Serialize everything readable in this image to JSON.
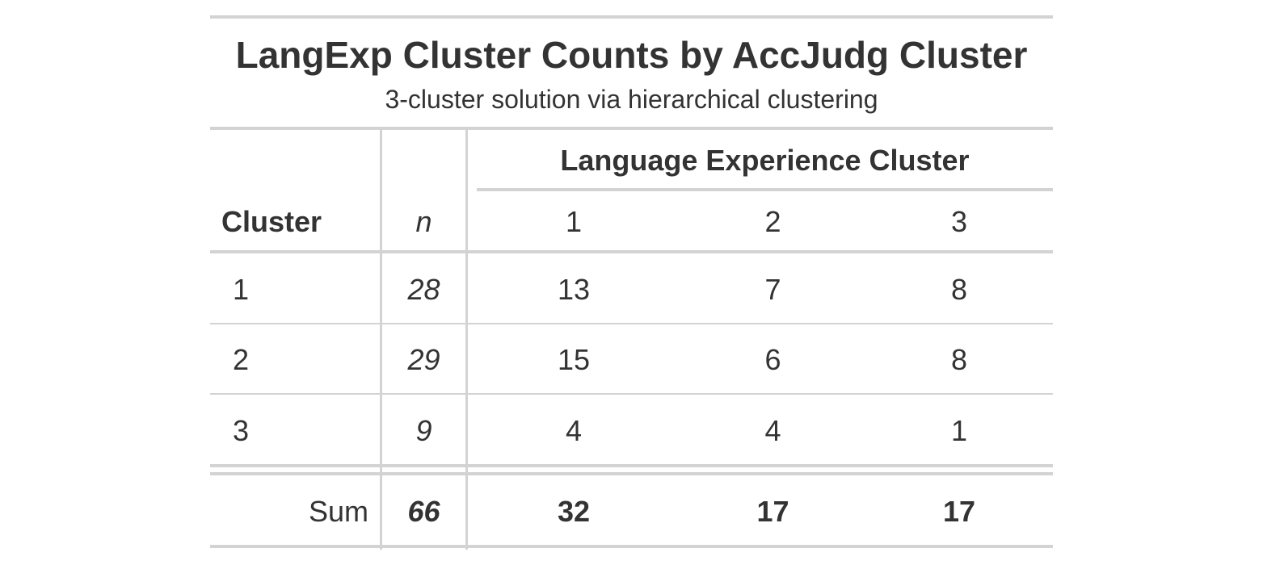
{
  "table": {
    "title": "LangExp Cluster Counts by AccJudg Cluster",
    "subtitle": "3-cluster solution via hierarchical clustering",
    "spanner_label": "Language Experience Cluster",
    "columns": {
      "cluster": "Cluster",
      "n": "n",
      "c1": "1",
      "c2": "2",
      "c3": "3"
    },
    "rows": [
      {
        "cluster": "1",
        "n": "28",
        "c1": "13",
        "c2": "7",
        "c3": "8"
      },
      {
        "cluster": "2",
        "n": "29",
        "c1": "15",
        "c2": "6",
        "c3": "8"
      },
      {
        "cluster": "3",
        "n": "9",
        "c1": "4",
        "c2": "4",
        "c3": "1"
      }
    ],
    "summary": {
      "label": "Sum",
      "n": "66",
      "c1": "32",
      "c2": "17",
      "c3": "17"
    }
  },
  "chart_data": {
    "type": "table",
    "title": "LangExp Cluster Counts by AccJudg Cluster",
    "subtitle": "3-cluster solution via hierarchical clustering",
    "column_spanner": "Language Experience Cluster",
    "columns": [
      "Cluster",
      "n",
      "1",
      "2",
      "3"
    ],
    "rows": [
      [
        "1",
        28,
        13,
        7,
        8
      ],
      [
        "2",
        29,
        15,
        6,
        8
      ],
      [
        "3",
        9,
        4,
        4,
        1
      ]
    ],
    "summary_row": [
      "Sum",
      66,
      32,
      17,
      17
    ]
  }
}
